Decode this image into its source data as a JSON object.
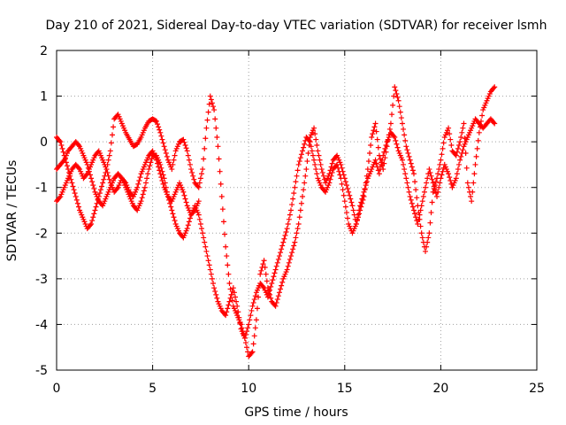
{
  "chart_data": {
    "type": "scatter",
    "title": "Day 210 of 2021, Sidereal Day-to-day VTEC variation (SDTVAR) for receiver lsmh",
    "xlabel": "GPS time / hours",
    "ylabel": "SDTVAR / TECUs",
    "xlim": [
      0,
      25
    ],
    "ylim": [
      -5,
      2
    ],
    "xticks": [
      0,
      5,
      10,
      15,
      20,
      25
    ],
    "yticks": [
      -5,
      -4,
      -3,
      -2,
      -1,
      0,
      1,
      2
    ],
    "grid": true,
    "marker": "+",
    "color": "#ff0000",
    "series": [
      {
        "x": [
          0.0,
          0.2,
          0.4,
          0.6,
          0.8,
          1.0,
          1.2,
          1.4,
          1.6,
          1.8,
          2.0,
          2.2,
          2.4,
          2.6,
          2.8,
          3.0,
          3.2,
          3.4,
          3.6,
          3.8,
          4.0,
          4.2,
          4.4,
          4.6,
          4.8,
          5.0,
          5.2,
          5.4,
          5.6,
          5.8,
          6.0,
          6.2,
          6.4,
          6.6,
          6.8,
          7.0,
          7.2,
          7.4,
          7.6,
          7.8,
          8.0,
          8.2,
          8.4,
          8.6,
          8.8,
          9.0,
          9.2,
          9.4,
          9.6,
          9.8,
          10.0,
          10.2,
          10.4,
          10.6,
          10.8,
          11.0,
          11.2,
          11.4,
          11.6,
          11.8,
          12.0,
          12.2,
          12.4,
          12.6,
          12.8,
          13.0,
          13.2,
          13.4,
          13.6,
          13.8,
          14.0,
          14.2,
          14.4,
          14.6,
          14.8,
          15.0,
          15.2,
          15.4,
          15.6,
          15.8,
          16.0,
          16.2,
          16.4,
          16.6,
          16.8,
          17.0,
          17.2,
          17.4,
          17.6,
          17.8,
          18.0,
          18.2,
          18.4,
          18.6,
          18.8,
          19.0,
          19.2,
          19.4,
          19.6,
          19.8,
          20.0,
          20.2,
          20.4,
          20.6,
          20.8,
          21.0,
          21.2,
          21.4,
          21.6,
          21.8,
          22.0,
          22.2,
          22.4,
          22.6,
          22.8
        ],
        "y": [
          0.1,
          0.0,
          -0.3,
          -0.6,
          -0.9,
          -1.2,
          -1.5,
          -1.7,
          -1.9,
          -1.8,
          -1.5,
          -1.2,
          -0.9,
          -0.6,
          -0.2,
          0.5,
          0.6,
          0.4,
          0.2,
          0.05,
          -0.1,
          -0.05,
          0.1,
          0.3,
          0.45,
          0.5,
          0.45,
          0.2,
          -0.1,
          -0.4,
          -0.6,
          -0.2,
          0.0,
          0.05,
          -0.2,
          -0.6,
          -0.9,
          -1.0,
          -0.6,
          0.3,
          1.0,
          0.7,
          -0.1,
          -1.2,
          -2.3,
          -3.1,
          -3.6,
          -3.8,
          -4.0,
          -4.3,
          -4.7,
          -4.6,
          -3.9,
          -2.9,
          -2.6,
          -3.2,
          -3.5,
          -3.6,
          -3.3,
          -3.0,
          -2.8,
          -2.5,
          -2.2,
          -1.8,
          -1.2,
          -0.6,
          0.1,
          0.3,
          -0.2,
          -0.6,
          -0.9,
          -0.7,
          -0.4,
          -0.3,
          -0.5,
          -0.8,
          -1.1,
          -1.4,
          -1.8,
          -1.5,
          -1.2,
          -0.6,
          0.1,
          0.4,
          -0.3,
          -0.6,
          -0.1,
          0.4,
          1.2,
          0.9,
          0.4,
          -0.1,
          -0.4,
          -0.7,
          -1.4,
          -2.0,
          -2.4,
          -2.0,
          -1.1,
          -0.8,
          -0.4,
          0.1,
          0.3,
          -0.2,
          -0.3,
          0.0,
          0.4,
          -0.9,
          -1.3,
          -0.5,
          0.2,
          0.7,
          0.9,
          1.1,
          1.2
        ]
      },
      {
        "x": [
          0.0,
          0.2,
          0.4,
          0.6,
          0.8,
          1.0,
          1.2,
          1.4,
          1.6,
          1.8,
          2.0,
          2.2,
          2.4,
          2.6,
          2.8,
          3.0,
          3.2,
          3.4,
          3.6,
          3.8,
          4.0,
          4.2,
          4.4,
          4.6,
          4.8,
          5.0,
          5.2,
          5.4,
          5.6,
          5.8,
          6.0,
          6.2,
          6.4,
          6.6,
          6.8,
          7.0,
          7.2,
          7.4,
          7.6,
          7.8,
          8.0,
          8.2,
          8.4,
          8.6,
          8.8,
          9.0,
          9.2,
          9.4,
          9.6,
          9.8,
          10.0,
          10.2,
          10.4,
          10.6,
          10.8,
          11.0,
          11.2,
          11.4,
          11.6,
          11.8,
          12.0,
          12.2,
          12.4,
          12.6,
          12.8,
          13.0,
          13.2,
          13.4,
          13.6,
          13.8,
          14.0,
          14.2,
          14.4,
          14.6,
          14.8,
          15.0,
          15.2,
          15.4,
          15.6,
          15.8,
          16.0,
          16.2,
          16.4,
          16.6,
          16.8,
          17.0,
          17.2,
          17.4,
          17.6,
          17.8,
          18.0,
          18.2,
          18.4,
          18.6,
          18.8,
          19.0,
          19.2,
          19.4,
          19.6,
          19.8,
          20.0,
          20.2,
          20.4,
          20.6,
          20.8,
          21.0,
          21.2,
          21.4,
          21.6,
          21.8,
          22.0,
          22.2,
          22.4,
          22.6,
          22.8
        ],
        "y": [
          -0.6,
          -0.5,
          -0.4,
          -0.2,
          -0.1,
          0.0,
          -0.1,
          -0.3,
          -0.5,
          -0.8,
          -1.1,
          -1.3,
          -1.4,
          -1.2,
          -1.0,
          -0.8,
          -0.7,
          -0.8,
          -1.0,
          -1.2,
          -1.4,
          -1.5,
          -1.3,
          -1.0,
          -0.6,
          -0.3,
          -0.3,
          -0.5,
          -0.8,
          -1.2,
          -1.5,
          -1.8,
          -2.0,
          -2.1,
          -1.9,
          -1.6,
          -1.4,
          -1.6,
          -2.0,
          -2.4,
          -2.8,
          -3.2,
          -3.5,
          -3.7,
          -3.8,
          -3.5,
          -3.2,
          -3.6,
          -4.1,
          -4.3,
          -4.0,
          -3.6,
          -3.3,
          -3.1,
          -3.2,
          -3.4,
          -3.1,
          -2.8,
          -2.5,
          -2.2,
          -1.9,
          -1.5,
          -1.0,
          -0.5,
          -0.2,
          0.1,
          0.0,
          -0.4,
          -0.8,
          -1.0,
          -1.1,
          -0.9,
          -0.6,
          -0.5,
          -0.8,
          -1.3,
          -1.8,
          -2.0,
          -1.8,
          -1.4,
          -1.1,
          -0.8,
          -0.6,
          -0.4,
          -0.7,
          -0.3,
          0.0,
          0.2,
          0.1,
          -0.2,
          -0.4,
          -0.8,
          -1.2,
          -1.5,
          -1.8,
          -1.4,
          -1.0,
          -0.6,
          -0.9,
          -1.2,
          -0.8,
          -0.5,
          -0.7,
          -1.0,
          -0.8,
          -0.4,
          -0.1,
          0.1,
          0.3,
          0.5,
          0.4,
          0.3,
          0.4,
          0.5,
          0.4
        ]
      },
      {
        "x": [
          0.0,
          0.2,
          0.4,
          0.6,
          0.8,
          1.0,
          1.2,
          1.4,
          1.6,
          1.8,
          2.0,
          2.2,
          2.4,
          2.6,
          2.8,
          3.0,
          3.2,
          3.4,
          3.6,
          3.8,
          4.0,
          4.2,
          4.4,
          4.6,
          4.8,
          5.0,
          5.2,
          5.4,
          5.6,
          5.8,
          6.0,
          6.2,
          6.4,
          6.6,
          6.8,
          7.0,
          7.2,
          7.4
        ],
        "y": [
          -1.3,
          -1.2,
          -1.0,
          -0.8,
          -0.6,
          -0.5,
          -0.6,
          -0.8,
          -0.7,
          -0.5,
          -0.3,
          -0.2,
          -0.4,
          -0.6,
          -0.9,
          -1.1,
          -1.0,
          -0.8,
          -0.9,
          -1.1,
          -1.2,
          -1.0,
          -0.7,
          -0.5,
          -0.3,
          -0.2,
          -0.4,
          -0.7,
          -1.0,
          -1.2,
          -1.3,
          -1.1,
          -0.9,
          -1.1,
          -1.4,
          -1.6,
          -1.5,
          -1.3
        ]
      }
    ]
  }
}
